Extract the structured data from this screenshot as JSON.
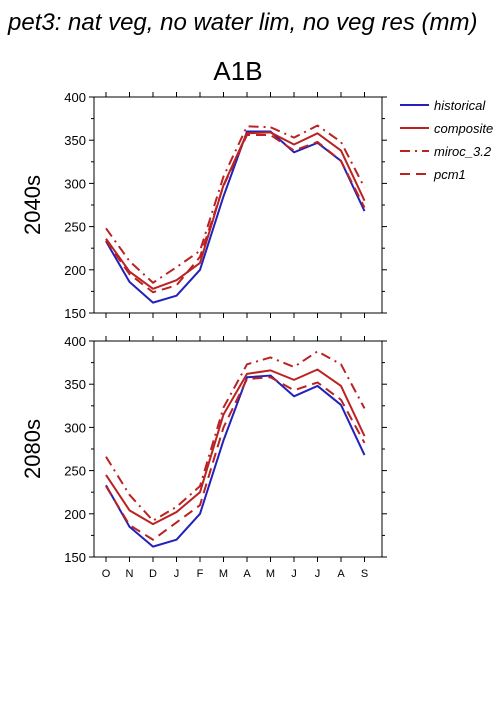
{
  "title": "pet3: nat veg, no water lim, no veg res (mm)",
  "scenario": "A1B",
  "legend": [
    {
      "name": "historical",
      "color": "#2222bb",
      "dash": "solid"
    },
    {
      "name": "composite",
      "color": "#bb2222",
      "dash": "solid"
    },
    {
      "name": "miroc_3.2",
      "color": "#bb2222",
      "dash": "dashdot"
    },
    {
      "name": "pcm1",
      "color": "#bb2222",
      "dash": "dash"
    }
  ],
  "chart_data": [
    {
      "type": "line",
      "row_label": "2040s",
      "categories": [
        "O",
        "N",
        "D",
        "J",
        "F",
        "M",
        "A",
        "M",
        "J",
        "J",
        "A",
        "S"
      ],
      "ylim": [
        150,
        400
      ],
      "yticks": [
        150,
        200,
        250,
        300,
        350,
        400
      ],
      "series": [
        {
          "name": "historical",
          "values": [
            233,
            186,
            162,
            170,
            200,
            285,
            360,
            360,
            336,
            347,
            326,
            268
          ]
        },
        {
          "name": "composite",
          "values": [
            236,
            198,
            178,
            188,
            208,
            298,
            358,
            359,
            345,
            358,
            338,
            280
          ]
        },
        {
          "name": "miroc_3.2",
          "values": [
            248,
            210,
            185,
            203,
            222,
            308,
            366,
            365,
            353,
            367,
            348,
            295
          ]
        },
        {
          "name": "pcm1",
          "values": [
            234,
            195,
            174,
            182,
            215,
            297,
            356,
            356,
            338,
            348,
            326,
            272
          ]
        }
      ]
    },
    {
      "type": "line",
      "row_label": "2080s",
      "categories": [
        "O",
        "N",
        "D",
        "J",
        "F",
        "M",
        "A",
        "M",
        "J",
        "J",
        "A",
        "S"
      ],
      "ylim": [
        150,
        400
      ],
      "yticks": [
        150,
        200,
        250,
        300,
        350,
        400
      ],
      "series": [
        {
          "name": "historical",
          "values": [
            233,
            185,
            162,
            170,
            200,
            285,
            358,
            360,
            336,
            348,
            326,
            268
          ]
        },
        {
          "name": "composite",
          "values": [
            245,
            204,
            188,
            202,
            225,
            315,
            362,
            366,
            355,
            367,
            348,
            290
          ]
        },
        {
          "name": "miroc_3.2",
          "values": [
            266,
            222,
            192,
            208,
            232,
            323,
            373,
            381,
            370,
            388,
            373,
            322
          ]
        },
        {
          "name": "pcm1",
          "values": [
            232,
            187,
            170,
            190,
            210,
            300,
            356,
            358,
            343,
            352,
            332,
            282
          ]
        }
      ]
    }
  ]
}
